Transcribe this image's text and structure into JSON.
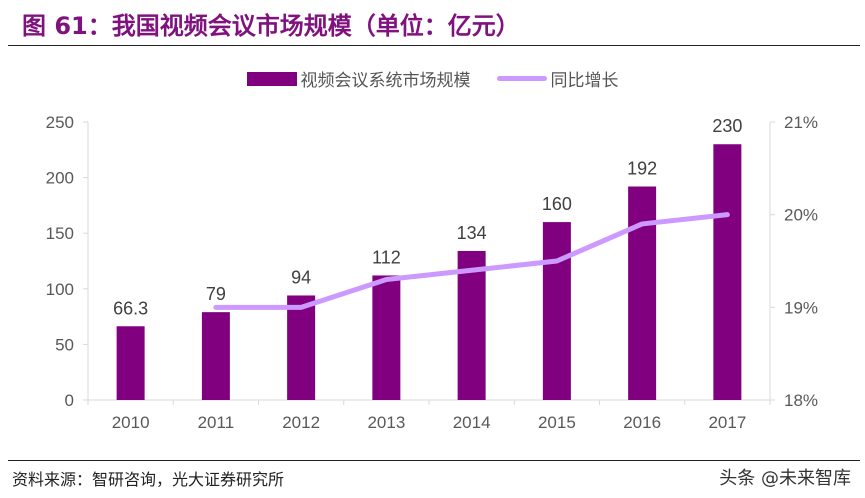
{
  "title": "图 61：我国视频会议市场规模（单位：亿元）",
  "source": "资料来源：智研咨询，光大证券研究所",
  "watermark": "头条 @未来智库",
  "chart_data": {
    "type": "bar+line",
    "categories": [
      "2010",
      "2011",
      "2012",
      "2013",
      "2014",
      "2015",
      "2016",
      "2017"
    ],
    "series": [
      {
        "name": "视频会议系统市场规模",
        "type": "bar",
        "axis": "left",
        "color": "#800080",
        "values": [
          66.3,
          79,
          94,
          112,
          134,
          160,
          192,
          230
        ],
        "labels": [
          "66.3",
          "79",
          "94",
          "112",
          "134",
          "160",
          "192",
          "230"
        ]
      },
      {
        "name": "同比增长",
        "type": "line",
        "axis": "right",
        "color": "#cc99ff",
        "values": [
          null,
          19.0,
          19.0,
          19.3,
          19.4,
          19.5,
          19.9,
          20.0
        ]
      }
    ],
    "left_axis": {
      "ylim": [
        0,
        250
      ],
      "ticks": [
        "0",
        "50",
        "100",
        "150",
        "200",
        "250"
      ]
    },
    "right_axis": {
      "ylim": [
        18,
        21
      ],
      "ticks": [
        "18%",
        "19%",
        "20%",
        "21%"
      ]
    },
    "legend": "top-center",
    "grid": false
  }
}
